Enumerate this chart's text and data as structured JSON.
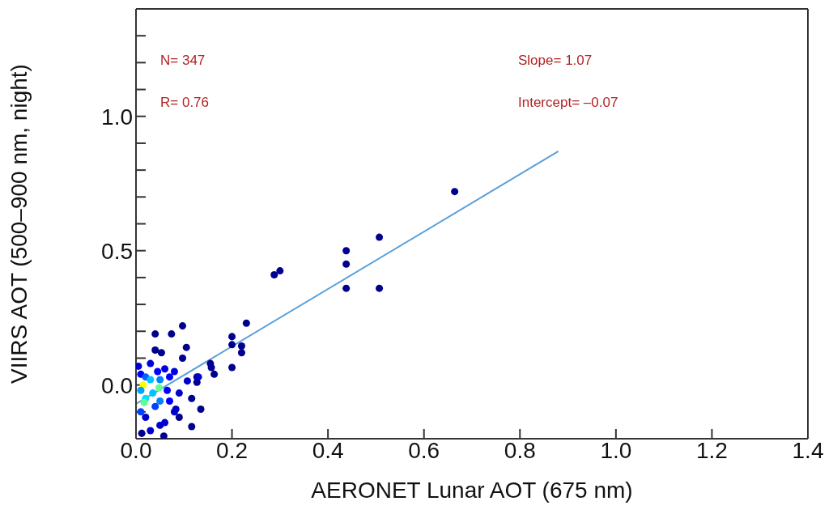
{
  "chart_data": {
    "type": "scatter",
    "xlabel": "AERONET Lunar AOT (675 nm)",
    "ylabel": "VIIRS AOT (500–900 nm, night)",
    "annotations": [
      "N= 347",
      "R= 0.76",
      "Slope= 1.07",
      "Intercept= –0.07"
    ],
    "xlim": [
      0,
      1.4
    ],
    "xticks": [
      {
        "value": 0,
        "label": "0.0"
      },
      {
        "value": 0.2,
        "label": "0.2"
      },
      {
        "value": 0.4,
        "label": "0.4"
      },
      {
        "value": 0.6,
        "label": "0.6"
      },
      {
        "value": 0.8,
        "label": "0.8"
      },
      {
        "value": 1.0,
        "label": "1.0"
      },
      {
        "value": 1.2,
        "label": "1.2"
      },
      {
        "value": 1.4,
        "label": "1.4"
      }
    ],
    "ylim": [
      -0.2,
      1.4
    ],
    "yticks": [
      {
        "value": -0.2,
        "label": null
      },
      {
        "value": -0.1,
        "label": null
      },
      {
        "value": 0,
        "label": "0.0"
      },
      {
        "value": 0.1,
        "label": null
      },
      {
        "value": 0.2,
        "label": null
      },
      {
        "value": 0.3,
        "label": null
      },
      {
        "value": 0.4,
        "label": null
      },
      {
        "value": 0.5,
        "label": "0.5"
      },
      {
        "value": 0.6,
        "label": null
      },
      {
        "value": 0.7,
        "label": null
      },
      {
        "value": 0.8,
        "label": null
      },
      {
        "value": 0.9,
        "label": null
      },
      {
        "value": 1.0,
        "label": "1.0"
      },
      {
        "value": 1.1,
        "label": null
      },
      {
        "value": 1.2,
        "label": null
      },
      {
        "value": 1.3,
        "label": null
      },
      {
        "value": 1.4,
        "label": null
      }
    ],
    "grid": false,
    "legend": false,
    "series": [
      {
        "marker": "circle",
        "x": [
          0.664,
          0.507,
          0.438,
          0.438,
          0.438,
          0.507,
          0.288,
          0.3,
          0.23,
          0.2,
          0.2,
          0.22,
          0.22,
          0.2,
          0.155,
          0.157,
          0.163,
          0.127,
          0.127,
          0.097,
          0.04,
          0.074,
          0.105,
          0.04,
          0.053,
          0.097,
          0.13,
          0.107,
          0.116,
          0.135,
          0.116,
          0.012,
          0.058,
          0.09,
          0.083,
          0.09,
          0.005,
          0.03,
          0.06,
          0.08,
          0.01,
          0.045,
          0.07,
          0.02,
          0.06,
          0.08,
          0.03,
          0.05,
          0.07,
          0.01,
          0.04,
          0.065,
          0.02,
          0.05,
          0.015,
          0.048,
          0.02,
          0.017,
          0.035,
          0.03,
          0.01,
          0.05
        ],
        "values": [
          0.72,
          0.55,
          0.5,
          0.45,
          0.36,
          0.36,
          0.41,
          0.425,
          0.23,
          0.18,
          0.15,
          0.145,
          0.12,
          0.065,
          0.08,
          0.065,
          0.04,
          0.03,
          0.01,
          0.22,
          0.19,
          0.19,
          0.14,
          0.13,
          0.12,
          0.1,
          0.03,
          0.015,
          -0.05,
          -0.09,
          -0.155,
          -0.18,
          -0.19,
          -0.12,
          -0.09,
          -0.03,
          0.07,
          0.08,
          0.06,
          0.05,
          0.04,
          0.05,
          0.03,
          -0.12,
          -0.14,
          -0.1,
          -0.17,
          -0.15,
          -0.06,
          -0.1,
          -0.08,
          -0.02,
          0.03,
          0.02,
          0.0,
          -0.01,
          -0.05,
          -0.065,
          -0.03,
          0.02,
          -0.02,
          -0.06
        ],
        "colors": [
          "#00008f",
          "#00008f",
          "#00008f",
          "#00008f",
          "#00008f",
          "#00008f",
          "#00008f",
          "#00008f",
          "#00008f",
          "#00008f",
          "#00008f",
          "#00008f",
          "#00008f",
          "#00008f",
          "#00008f",
          "#00008f",
          "#00008f",
          "#00008f",
          "#00008f",
          "#00008f",
          "#00008f",
          "#00008f",
          "#00008f",
          "#00008f",
          "#00008f",
          "#00008f",
          "#0000cc",
          "#0000cc",
          "#00008f",
          "#00008f",
          "#00008f",
          "#00008f",
          "#00008f",
          "#00008f",
          "#0000cc",
          "#0000cc",
          "#0000cc",
          "#0000e0",
          "#0000e0",
          "#0000e0",
          "#0000ff",
          "#0000ff",
          "#0000ff",
          "#0000cc",
          "#0000cc",
          "#0000cc",
          "#0000cc",
          "#0000cc",
          "#0000ff",
          "#0040ff",
          "#0040ff",
          "#0000ff",
          "#0060ff",
          "#0080ff",
          "#ffff00",
          "#60ff90",
          "#00e0ff",
          "#60ff90",
          "#00c0ff",
          "#00c0ff",
          "#00a0ff",
          "#0080ff"
        ]
      },
      {
        "type": "line",
        "color": "#5aa0d8",
        "x": [
          0,
          0.88
        ],
        "marker": "none",
        "values": [
          -0.07,
          0.87
        ]
      }
    ]
  }
}
